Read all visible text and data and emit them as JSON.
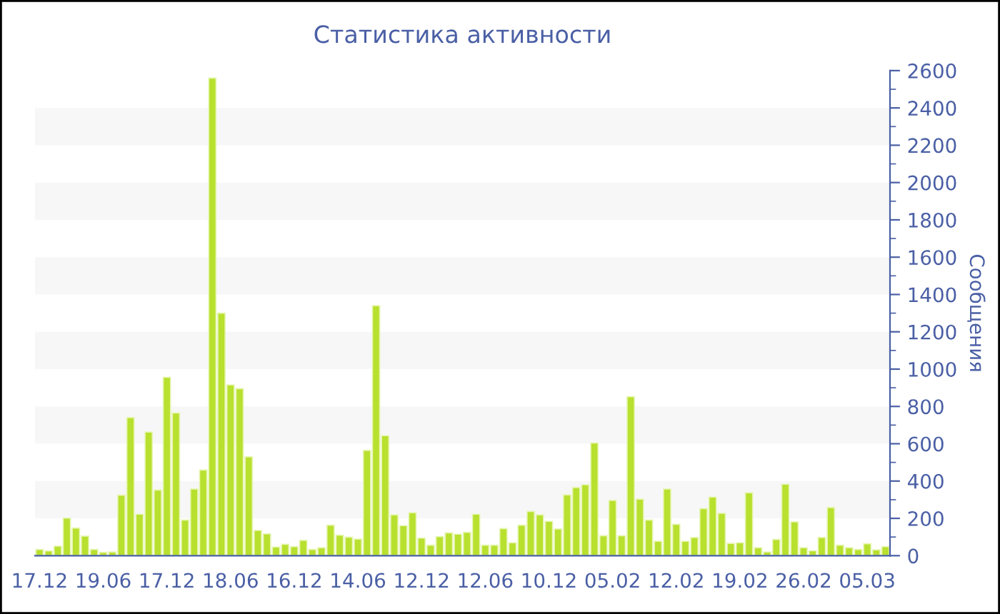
{
  "chart_data": {
    "type": "bar",
    "title": "Статистика активности",
    "ylabel": "Сообщения",
    "categories": [
      "17.12",
      null,
      null,
      null,
      null,
      null,
      null,
      "19.06",
      null,
      null,
      null,
      null,
      null,
      null,
      "17.12",
      null,
      null,
      null,
      null,
      null,
      null,
      "18.06",
      null,
      null,
      null,
      null,
      null,
      null,
      "16.12",
      null,
      null,
      null,
      null,
      null,
      null,
      "14.06",
      null,
      null,
      null,
      null,
      null,
      null,
      "12.12",
      null,
      null,
      null,
      null,
      null,
      null,
      "12.06",
      null,
      null,
      null,
      null,
      null,
      null,
      "10.12",
      null,
      null,
      null,
      null,
      null,
      null,
      "05.02",
      null,
      null,
      null,
      null,
      null,
      null,
      "12.02",
      null,
      null,
      null,
      null,
      null,
      null,
      "19.02",
      null,
      null,
      null,
      null,
      null,
      null,
      "26.02",
      null,
      null,
      null,
      null,
      null,
      null,
      "05.03",
      null,
      null
    ],
    "values": [
      33,
      25,
      51,
      201,
      148,
      105,
      33,
      18,
      20,
      324,
      740,
      222,
      663,
      352,
      956,
      765,
      191,
      357,
      459,
      2560,
      1300,
      915,
      895,
      530,
      135,
      117,
      46,
      61,
      48,
      82,
      33,
      43,
      163,
      110,
      99,
      89,
      564,
      1340,
      643,
      219,
      161,
      230,
      94,
      56,
      102,
      122,
      115,
      125,
      222,
      56,
      56,
      145,
      69,
      163,
      237,
      219,
      184,
      143,
      326,
      365,
      380,
      604,
      107,
      296,
      107,
      852,
      303,
      191,
      77,
      357,
      168,
      77,
      97,
      252,
      314,
      227,
      66,
      69,
      337,
      43,
      20,
      87,
      383,
      181,
      43,
      26,
      97,
      258,
      56,
      43,
      33,
      64,
      31,
      48
    ],
    "color": "#b8e02e",
    "ylim": [
      0,
      2600
    ],
    "yticks": [
      0,
      200,
      400,
      600,
      800,
      1000,
      1200,
      1400,
      1600,
      1800,
      2000,
      2200,
      2400,
      2600
    ],
    "bands": [
      {
        "axis": "y",
        "from": 200,
        "to": 400,
        "color": "#f7f7f7"
      },
      {
        "axis": "y",
        "from": 600,
        "to": 800,
        "color": "#f7f7f7"
      },
      {
        "axis": "y",
        "from": 1000,
        "to": 1200,
        "color": "#f7f7f7"
      },
      {
        "axis": "y",
        "from": 1400,
        "to": 1600,
        "color": "#f7f7f7"
      },
      {
        "axis": "y",
        "from": 1800,
        "to": 2000,
        "color": "#f7f7f7"
      },
      {
        "axis": "y",
        "from": 2200,
        "to": 2400,
        "color": "#f7f7f7"
      }
    ],
    "grid": false,
    "legend": false
  }
}
